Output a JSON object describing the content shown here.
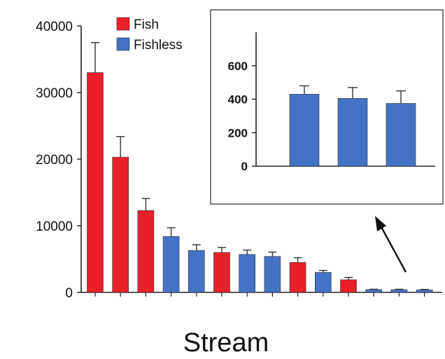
{
  "chart_data": [
    {
      "type": "bar",
      "title": "",
      "xlabel": "Stream",
      "ylabel": "",
      "ylim": [
        0,
        40000
      ],
      "yticks": [
        0,
        10000,
        20000,
        30000,
        40000
      ],
      "legend": {
        "placement": "top-left",
        "entries": [
          "Fish",
          "Fishless"
        ]
      },
      "colors": {
        "Fish": "#e8202a",
        "Fishless": "#4472c4"
      },
      "bars": [
        {
          "group": "Fish",
          "value": 33000,
          "error": 4500
        },
        {
          "group": "Fish",
          "value": 20300,
          "error": 3100
        },
        {
          "group": "Fish",
          "value": 12300,
          "error": 1800
        },
        {
          "group": "Fishless",
          "value": 8400,
          "error": 1300
        },
        {
          "group": "Fishless",
          "value": 6300,
          "error": 850
        },
        {
          "group": "Fish",
          "value": 6000,
          "error": 750
        },
        {
          "group": "Fishless",
          "value": 5700,
          "error": 650
        },
        {
          "group": "Fishless",
          "value": 5400,
          "error": 650
        },
        {
          "group": "Fish",
          "value": 4500,
          "error": 700
        },
        {
          "group": "Fishless",
          "value": 3000,
          "error": 300
        },
        {
          "group": "Fish",
          "value": 1900,
          "error": 350
        },
        {
          "group": "Fishless",
          "value": 430,
          "error": 50
        },
        {
          "group": "Fishless",
          "value": 405,
          "error": 65
        },
        {
          "group": "Fishless",
          "value": 375,
          "error": 75
        }
      ]
    },
    {
      "type": "bar",
      "title": "",
      "xlabel": "",
      "ylabel": "",
      "ylim": [
        0,
        800
      ],
      "yticks": [
        0,
        200,
        400,
        600
      ],
      "bars": [
        {
          "group": "Fishless",
          "value": 430,
          "error": 50
        },
        {
          "group": "Fishless",
          "value": 405,
          "error": 65
        },
        {
          "group": "Fishless",
          "value": 375,
          "error": 75
        }
      ]
    }
  ]
}
